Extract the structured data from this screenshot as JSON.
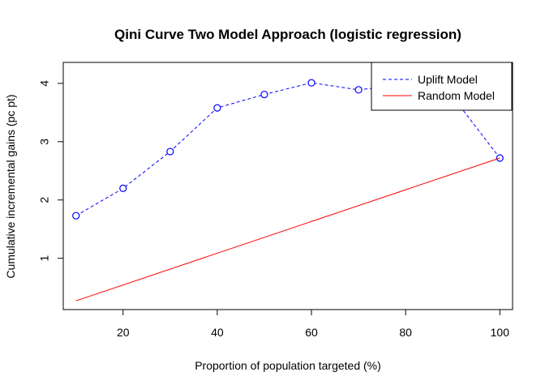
{
  "chart_data": {
    "type": "line",
    "title": "Qini Curve Two Model Approach (logistic regression)",
    "xlabel": "Proportion of population targeted (%)",
    "ylabel": "Cumulative incremental gains (pc pt)",
    "xlim": [
      7.3,
      102.7
    ],
    "ylim": [
      0.12,
      4.36
    ],
    "x_ticks": [
      20,
      40,
      60,
      80,
      100
    ],
    "y_ticks": [
      1,
      2,
      3,
      4
    ],
    "grid": false,
    "legend_position": "top-right",
    "series": [
      {
        "name": "Uplift Model",
        "color": "#0000ff",
        "line_style": "dashed",
        "markers": "open-circle",
        "x": [
          10,
          20,
          30,
          40,
          50,
          60,
          70,
          80,
          90,
          100
        ],
        "y": [
          1.73,
          2.2,
          2.83,
          3.58,
          3.81,
          4.01,
          3.89,
          3.98,
          3.77,
          2.72
        ]
      },
      {
        "name": "Random Model",
        "color": "#ff0000",
        "line_style": "solid",
        "markers": "none",
        "x": [
          10,
          100
        ],
        "y": [
          0.27,
          2.72
        ]
      }
    ]
  }
}
